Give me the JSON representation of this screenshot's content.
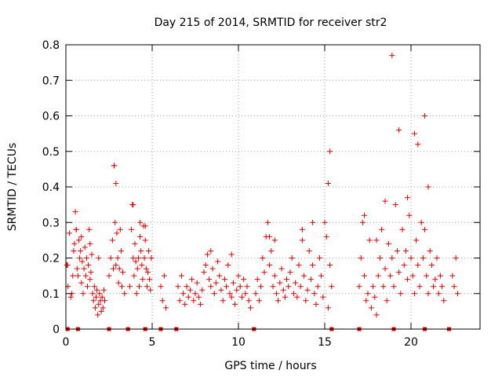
{
  "chart_data": {
    "type": "scatter",
    "title": "Day 215 of 2014, SRMTID for receiver str2",
    "xlabel": "GPS time / hours",
    "ylabel": "SRMTID / TECUs",
    "xlim": [
      0,
      24
    ],
    "ylim": [
      0,
      0.8
    ],
    "xticks": [
      0,
      5,
      10,
      15,
      20
    ],
    "xtick_labels": [
      "0",
      "5",
      "10",
      "15",
      "20"
    ],
    "yticks": [
      0,
      0.1,
      0.2,
      0.3,
      0.4,
      0.5,
      0.6,
      0.7,
      0.8
    ],
    "ytick_labels": [
      "0",
      "0.1",
      "0.2",
      "0.3",
      "0.4",
      "0.5",
      "0.6",
      "0.7",
      "0.8"
    ],
    "grid": true,
    "marker": "+",
    "color": "#e00000",
    "series": [
      {
        "name": "SRMTID",
        "x": [
          0.05,
          0.12,
          0.2,
          0.28,
          0.35,
          0.4,
          0.45,
          0.5,
          0.55,
          0.6,
          0.65,
          0.7,
          0.75,
          0.8,
          0.85,
          0.9,
          0.95,
          1.0,
          1.05,
          1.1,
          1.15,
          1.2,
          1.25,
          1.3,
          1.35,
          1.4,
          1.45,
          1.5,
          1.55,
          1.6,
          1.65,
          1.7,
          1.75,
          1.8,
          1.85,
          1.9,
          1.95,
          2.0,
          2.05,
          2.1,
          2.15,
          2.2,
          2.25,
          2.5,
          2.6,
          2.7,
          2.75,
          2.8,
          2.85,
          2.9,
          2.95,
          3.0,
          3.05,
          3.1,
          3.15,
          3.2,
          3.25,
          3.3,
          3.4,
          3.7,
          3.8,
          3.85,
          3.9,
          3.95,
          4.0,
          4.05,
          4.1,
          4.15,
          4.2,
          4.25,
          4.3,
          4.35,
          4.4,
          4.45,
          4.5,
          4.55,
          4.6,
          4.65,
          4.7,
          4.75,
          4.8,
          4.85,
          4.9,
          4.95,
          5.5,
          5.6,
          5.7,
          5.8,
          6.5,
          6.6,
          6.7,
          6.8,
          6.9,
          7.0,
          7.1,
          7.2,
          7.3,
          7.4,
          7.5,
          7.6,
          7.7,
          7.8,
          7.9,
          8.0,
          8.1,
          8.2,
          8.3,
          8.4,
          8.5,
          8.6,
          8.7,
          8.8,
          8.9,
          9.0,
          9.1,
          9.2,
          9.3,
          9.4,
          9.5,
          9.6,
          9.7,
          9.8,
          9.9,
          10.0,
          10.1,
          10.2,
          10.3,
          10.4,
          10.5,
          10.6,
          10.7,
          11.0,
          11.1,
          11.2,
          11.3,
          11.4,
          11.5,
          11.6,
          11.7,
          11.8,
          11.9,
          12.0,
          12.1,
          12.2,
          12.3,
          12.4,
          12.5,
          12.6,
          12.7,
          12.8,
          12.9,
          13.0,
          13.1,
          13.2,
          13.3,
          13.4,
          13.5,
          13.6,
          13.7,
          13.8,
          13.9,
          14.0,
          14.1,
          14.2,
          14.3,
          14.4,
          14.5,
          14.6,
          14.7,
          14.8,
          14.9,
          15.0,
          15.1,
          15.2,
          15.3,
          15.4,
          17.0,
          17.1,
          17.2,
          17.3,
          17.4,
          17.5,
          17.6,
          17.7,
          17.8,
          17.9,
          18.0,
          18.1,
          18.2,
          18.3,
          18.4,
          18.5,
          18.6,
          18.7,
          18.8,
          18.9,
          19.0,
          19.1,
          19.2,
          19.3,
          19.4,
          19.5,
          19.6,
          19.7,
          19.8,
          19.9,
          20.0,
          20.1,
          20.2,
          20.3,
          20.4,
          20.5,
          20.6,
          20.7,
          20.8,
          20.9,
          21.0,
          21.1,
          21.2,
          21.3,
          21.4,
          21.5,
          21.6,
          21.7,
          21.8,
          21.9,
          22.4,
          22.5,
          22.6,
          22.7,
          0.1,
          0.6,
          0.9,
          1.4,
          1.9,
          2.8,
          2.9,
          3.9,
          4.3,
          4.6,
          8.4,
          9.6,
          11.8,
          12.1,
          13.7,
          14.3,
          15.2,
          15.3,
          17.3,
          18.0,
          18.5,
          18.9,
          19.3,
          19.8,
          20.2,
          20.4,
          20.8,
          21.0
        ],
        "y": [
          0.18,
          0.12,
          0.27,
          0.09,
          0.1,
          0.15,
          0.22,
          0.24,
          0.33,
          0.28,
          0.17,
          0.15,
          0.25,
          0.2,
          0.22,
          0.13,
          0.19,
          0.1,
          0.17,
          0.23,
          0.15,
          0.2,
          0.12,
          0.18,
          0.28,
          0.14,
          0.16,
          0.21,
          0.1,
          0.08,
          0.12,
          0.06,
          0.09,
          0.11,
          0.04,
          0.07,
          0.1,
          0.08,
          0.05,
          0.09,
          0.06,
          0.11,
          0.08,
          0.15,
          0.2,
          0.25,
          0.17,
          0.46,
          0.3,
          0.18,
          0.27,
          0.2,
          0.13,
          0.17,
          0.28,
          0.22,
          0.12,
          0.16,
          0.1,
          0.12,
          0.28,
          0.35,
          0.2,
          0.15,
          0.24,
          0.19,
          0.1,
          0.17,
          0.2,
          0.12,
          0.26,
          0.22,
          0.18,
          0.14,
          0.29,
          0.2,
          0.25,
          0.17,
          0.12,
          0.16,
          0.22,
          0.14,
          0.11,
          0.2,
          0.12,
          0.08,
          0.15,
          0.06,
          0.12,
          0.08,
          0.15,
          0.1,
          0.07,
          0.12,
          0.09,
          0.11,
          0.14,
          0.08,
          0.1,
          0.13,
          0.09,
          0.07,
          0.11,
          0.16,
          0.18,
          0.21,
          0.14,
          0.12,
          0.17,
          0.1,
          0.13,
          0.19,
          0.15,
          0.11,
          0.08,
          0.14,
          0.12,
          0.18,
          0.1,
          0.09,
          0.13,
          0.07,
          0.11,
          0.15,
          0.12,
          0.09,
          0.14,
          0.1,
          0.12,
          0.08,
          0.06,
          0.1,
          0.14,
          0.08,
          0.12,
          0.2,
          0.16,
          0.26,
          0.3,
          0.18,
          0.22,
          0.12,
          0.15,
          0.1,
          0.08,
          0.13,
          0.17,
          0.11,
          0.09,
          0.14,
          0.12,
          0.16,
          0.2,
          0.1,
          0.13,
          0.09,
          0.18,
          0.12,
          0.25,
          0.15,
          0.08,
          0.11,
          0.22,
          0.14,
          0.18,
          0.1,
          0.07,
          0.12,
          0.2,
          0.15,
          0.09,
          0.3,
          0.26,
          0.06,
          0.18,
          0.12,
          0.12,
          0.2,
          0.3,
          0.15,
          0.08,
          0.1,
          0.25,
          0.06,
          0.12,
          0.09,
          0.04,
          0.15,
          0.2,
          0.28,
          0.12,
          0.17,
          0.08,
          0.24,
          0.15,
          0.2,
          0.12,
          0.35,
          0.22,
          0.16,
          0.1,
          0.28,
          0.18,
          0.22,
          0.14,
          0.32,
          0.2,
          0.15,
          0.1,
          0.25,
          0.18,
          0.12,
          0.3,
          0.2,
          0.28,
          0.15,
          0.1,
          0.22,
          0.18,
          0.12,
          0.14,
          0.2,
          0.1,
          0.15,
          0.12,
          0.08,
          0.15,
          0.12,
          0.2,
          0.1,
          0.18,
          0.28,
          0.26,
          0.24,
          0.2,
          0.46,
          0.41,
          0.35,
          0.3,
          0.29,
          0.22,
          0.21,
          0.26,
          0.25,
          0.28,
          0.3,
          0.41,
          0.5,
          0.32,
          0.25,
          0.36,
          0.77,
          0.56,
          0.37,
          0.55,
          0.52,
          0.6,
          0.4
        ]
      }
    ],
    "data_gap_markers_x": [
      0.1,
      0.7,
      2.5,
      3.6,
      4.6,
      5.5,
      6.4,
      10.9,
      15.4,
      17.0,
      19.0,
      20.8,
      22.2
    ]
  }
}
